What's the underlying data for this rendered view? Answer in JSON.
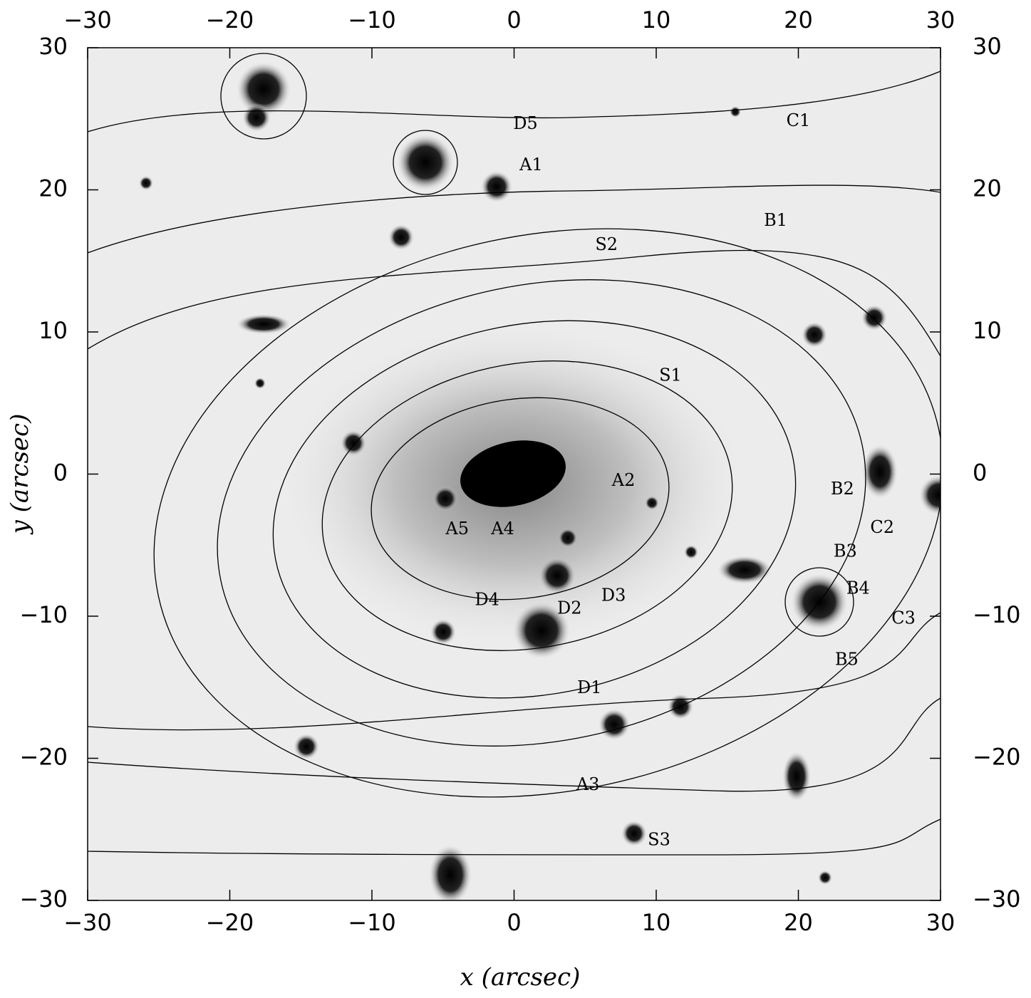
{
  "chart_data": {
    "type": "image",
    "xlabel": "x (arcsec)",
    "ylabel": "y (arcsec)",
    "xlim": [
      -30,
      30
    ],
    "ylim": [
      -30,
      30
    ],
    "xticks": [
      {
        "value": -30,
        "label": "−30"
      },
      {
        "value": -20,
        "label": "−20"
      },
      {
        "value": -10,
        "label": "−10"
      },
      0,
      10,
      20,
      30
    ],
    "yticks": [
      {
        "value": -30,
        "label": "−30"
      },
      {
        "value": -20,
        "label": "−20"
      },
      {
        "value": -10,
        "label": "−10"
      },
      0,
      10,
      20,
      30
    ],
    "annotations": [
      {
        "text": "D5",
        "x": 0.8,
        "y": 24.6
      },
      {
        "text": "A1",
        "x": 1.2,
        "y": 21.7
      },
      {
        "text": "C1",
        "x": 20.0,
        "y": 24.8
      },
      {
        "text": "B1",
        "x": 18.4,
        "y": 17.8
      },
      {
        "text": "S2",
        "x": 6.5,
        "y": 16.1
      },
      {
        "text": "S1",
        "x": 11.0,
        "y": 6.9
      },
      {
        "text": "A2",
        "x": 7.7,
        "y": -0.5
      },
      {
        "text": "B2",
        "x": 23.1,
        "y": -1.1
      },
      {
        "text": "C2",
        "x": 25.9,
        "y": -3.8
      },
      {
        "text": "B3",
        "x": 23.3,
        "y": -5.5
      },
      {
        "text": "B4",
        "x": 24.2,
        "y": -8.1
      },
      {
        "text": "C3",
        "x": 27.4,
        "y": -10.2
      },
      {
        "text": "D3",
        "x": 7.0,
        "y": -8.6
      },
      {
        "text": "D4",
        "x": -1.9,
        "y": -8.9
      },
      {
        "text": "D2",
        "x": 3.9,
        "y": -9.5
      },
      {
        "text": "A5",
        "x": -4.0,
        "y": -3.9
      },
      {
        "text": "A4",
        "x": -0.8,
        "y": -3.9
      },
      {
        "text": "B5",
        "x": 23.4,
        "y": -13.1
      },
      {
        "text": "D1",
        "x": 5.3,
        "y": -15.1
      },
      {
        "text": "A3",
        "x": 5.2,
        "y": -21.9
      },
      {
        "text": "S3",
        "x": 10.2,
        "y": -25.8
      }
    ]
  }
}
